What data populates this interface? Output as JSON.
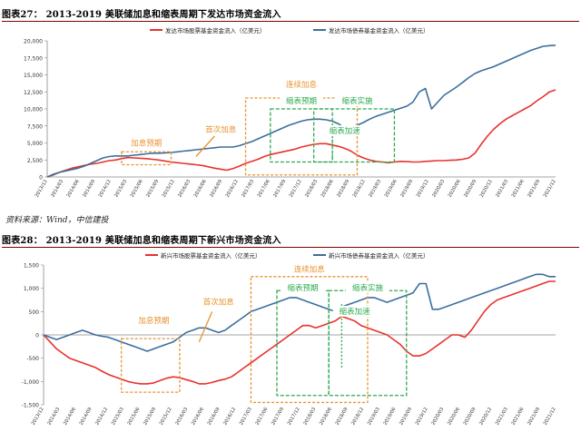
{
  "figure1": {
    "title": "图表27： 2013-2019 美联储加息和缩表周期下发达市场资金流入",
    "source": "资料来源：Wind，中信建投",
    "chart_data": {
      "type": "line",
      "ylim": [
        0,
        20000
      ],
      "yticks": [
        0,
        2500,
        5000,
        7500,
        10000,
        12500,
        15000,
        17500,
        20000
      ],
      "ytick_labels": [
        "0",
        "2,500",
        "5,000",
        "7,500",
        "10,000",
        "12,500",
        "15,000",
        "17,500",
        "20,000"
      ],
      "xtick_labels": [
        "2013/12",
        "2014/03",
        "2014/06",
        "2014/09",
        "2014/12",
        "2015/03",
        "2015/06",
        "2015/09",
        "2015/12",
        "2016/03",
        "2016/06",
        "2016/09",
        "2016/12",
        "2017/03",
        "2017/06",
        "2017/09",
        "2017/12",
        "2018/03",
        "2018/06",
        "2018/09",
        "2018/12",
        "2019/03",
        "2019/06",
        "2019/09",
        "2019/12",
        "2020/03",
        "2020/06",
        "2020/09",
        "2020/12",
        "2021/03",
        "2021/06",
        "2021/09",
        "2021/12"
      ],
      "series": [
        {
          "name": "发达市场股票基金资金流入（亿美元）",
          "color": "#e8322e",
          "values": [
            0,
            300,
            700,
            1000,
            1300,
            1500,
            1700,
            1900,
            2000,
            2200,
            2400,
            2500,
            2700,
            2850,
            2800,
            2750,
            2700,
            2600,
            2500,
            2350,
            2200,
            2100,
            2000,
            1900,
            1800,
            1700,
            1500,
            1300,
            1150,
            1000,
            1250,
            1600,
            2000,
            2300,
            2600,
            3000,
            3300,
            3500,
            3700,
            3900,
            4100,
            4400,
            4600,
            4800,
            4900,
            4900,
            4700,
            4500,
            4200,
            3800,
            3200,
            2800,
            2500,
            2300,
            2200,
            2100,
            2200,
            2300,
            2250,
            2200,
            2200,
            2300,
            2350,
            2400,
            2400,
            2450,
            2500,
            2600,
            2800,
            3500,
            4800,
            6000,
            7000,
            7800,
            8500,
            9000,
            9500,
            10000,
            10500,
            11200,
            11800,
            12500,
            12800
          ]
        },
        {
          "name": "发达市场债券基金资金流入（亿美元）",
          "color": "#3c6e9e",
          "values": [
            0,
            400,
            700,
            900,
            1100,
            1300,
            1600,
            2000,
            2400,
            2800,
            3000,
            3100,
            3100,
            3100,
            3200,
            3300,
            3400,
            3500,
            3500,
            3550,
            3600,
            3700,
            3800,
            3900,
            4000,
            4100,
            4200,
            4300,
            4400,
            4400,
            4400,
            4600,
            4900,
            5200,
            5600,
            6000,
            6400,
            6800,
            7200,
            7600,
            7900,
            8200,
            8400,
            8500,
            8500,
            8400,
            8200,
            7800,
            7200,
            7300,
            7600,
            8000,
            8500,
            8900,
            9200,
            9500,
            9800,
            10100,
            10400,
            11000,
            12500,
            13000,
            10000,
            11000,
            12000,
            12600,
            13200,
            13900,
            14600,
            15200,
            15600,
            15900,
            16200,
            16600,
            17000,
            17400,
            17800,
            18200,
            18600,
            18900,
            19200,
            19300,
            19350
          ]
        }
      ],
      "annotations": [
        {
          "label": "加息预期",
          "color": "#e8922e"
        },
        {
          "label": "首次加息",
          "color": "#e8922e"
        },
        {
          "label": "连续加息",
          "color": "#e8922e"
        },
        {
          "label": "缩表预期",
          "color": "#2eaa4e"
        },
        {
          "label": "缩表实施",
          "color": "#2eaa4e"
        },
        {
          "label": "缩表加速",
          "color": "#2eaa4e"
        }
      ]
    }
  },
  "figure2": {
    "title": "图表28： 2013-2019 美联储加息和缩表周期下新兴市场资金流入",
    "chart_data": {
      "type": "line",
      "ylim": [
        -1500,
        1500
      ],
      "yticks": [
        -1500,
        -1000,
        -500,
        0,
        500,
        1000,
        1500
      ],
      "ytick_labels": [
        "-1,500",
        "-1,000",
        "-500",
        "0",
        "500",
        "1,000",
        "1,500"
      ],
      "xtick_labels": [
        "2013/12",
        "2014/03",
        "2014/06",
        "2014/09",
        "2014/12",
        "2015/03",
        "2015/06",
        "2015/09",
        "2015/12",
        "2016/03",
        "2016/06",
        "2016/09",
        "2016/12",
        "2017/03",
        "2017/06",
        "2017/09",
        "2017/12",
        "2018/03",
        "2018/06",
        "2018/09",
        "2018/12",
        "2019/03",
        "2019/06",
        "2019/09",
        "2019/12",
        "2020/03",
        "2020/06",
        "2020/09",
        "2020/12",
        "2021/03",
        "2021/06",
        "2021/09",
        "2021/12"
      ],
      "series": [
        {
          "name": "新兴市场股票基金资金流入（亿美元）",
          "color": "#e8322e",
          "values": [
            0,
            -150,
            -300,
            -400,
            -500,
            -550,
            -600,
            -650,
            -700,
            -780,
            -850,
            -900,
            -950,
            -1000,
            -1030,
            -1050,
            -1050,
            -1030,
            -980,
            -930,
            -900,
            -920,
            -960,
            -1000,
            -1050,
            -1050,
            -1020,
            -980,
            -950,
            -900,
            -800,
            -700,
            -600,
            -500,
            -400,
            -300,
            -200,
            -100,
            0,
            100,
            200,
            200,
            150,
            200,
            250,
            300,
            400,
            350,
            300,
            200,
            150,
            100,
            50,
            0,
            -100,
            -200,
            -350,
            -450,
            -450,
            -400,
            -300,
            -200,
            -100,
            0,
            0,
            -50,
            100,
            300,
            500,
            650,
            750,
            800,
            850,
            900,
            950,
            1000,
            1050,
            1100,
            1150,
            1150
          ]
        },
        {
          "name": "新兴市场债券基金资金流入（亿美元）",
          "color": "#3c6e9e",
          "values": [
            0,
            -50,
            -100,
            -50,
            0,
            50,
            100,
            50,
            0,
            -30,
            -50,
            -100,
            -150,
            -200,
            -250,
            -300,
            -350,
            -300,
            -250,
            -200,
            -150,
            -50,
            50,
            100,
            150,
            150,
            100,
            50,
            100,
            200,
            300,
            400,
            500,
            550,
            600,
            650,
            700,
            750,
            800,
            800,
            750,
            700,
            650,
            600,
            550,
            500,
            600,
            650,
            700,
            750,
            800,
            800,
            750,
            700,
            750,
            800,
            850,
            900,
            1100,
            1100,
            550,
            550,
            600,
            650,
            700,
            750,
            800,
            850,
            900,
            950,
            1000,
            1050,
            1100,
            1150,
            1200,
            1250,
            1300,
            1300,
            1250,
            1250
          ]
        }
      ],
      "annotations": [
        {
          "label": "加息预期",
          "color": "#e8922e"
        },
        {
          "label": "首次加息",
          "color": "#e8922e"
        },
        {
          "label": "连续加息",
          "color": "#e8922e"
        },
        {
          "label": "缩表预期",
          "color": "#2eaa4e"
        },
        {
          "label": "缩表实施",
          "color": "#2eaa4e"
        },
        {
          "label": "缩表加速",
          "color": "#2eaa4e"
        }
      ]
    }
  }
}
